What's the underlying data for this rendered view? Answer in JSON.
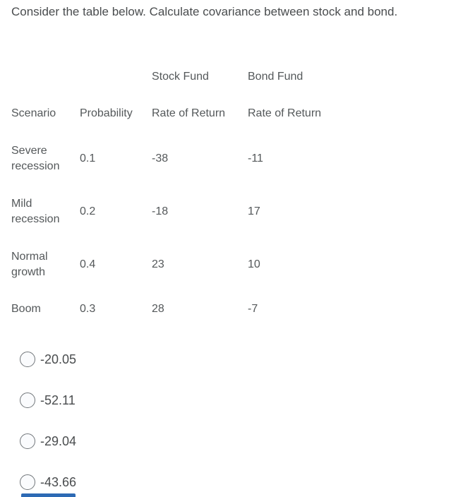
{
  "question": {
    "prompt": "Consider the table below. Calculate covariance between stock and bond."
  },
  "table": {
    "group_headers": {
      "stock": "Stock Fund",
      "bond": "Bond Fund"
    },
    "column_headers": {
      "scenario": "Scenario",
      "probability": "Probability",
      "stock_return": "Rate of Return",
      "bond_return": "Rate of Return"
    },
    "rows": [
      {
        "scenario": "Severe recession",
        "probability": "0.1",
        "stock_return": "-38",
        "bond_return": "-11"
      },
      {
        "scenario": "Mild recession",
        "probability": "0.2",
        "stock_return": "-18",
        "bond_return": "17"
      },
      {
        "scenario": "Normal growth",
        "probability": "0.4",
        "stock_return": "23",
        "bond_return": "10"
      },
      {
        "scenario": "Boom",
        "probability": "0.3",
        "stock_return": "28",
        "bond_return": "-7"
      }
    ]
  },
  "options": [
    {
      "label": "-20.05",
      "selected": false
    },
    {
      "label": "-52.11",
      "selected": false
    },
    {
      "label": "-29.04",
      "selected": false
    },
    {
      "label": "-43.66",
      "selected": false
    }
  ],
  "colors": {
    "text": "#494c4e",
    "radio_border": "#71767a",
    "radio_fill": "#fafbfd",
    "bottom_bar": "#2d6ab4"
  }
}
